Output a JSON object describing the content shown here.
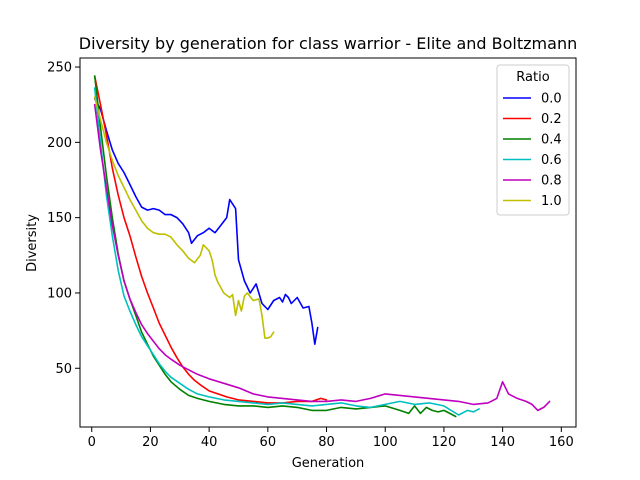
{
  "chart_data": {
    "type": "line",
    "title": "Diversity by generation for class warrior - Elite and Boltzmann",
    "xlabel": "Generation",
    "ylabel": "Diversity",
    "xlim": [
      -4,
      165
    ],
    "ylim": [
      11,
      256
    ],
    "xticks": [
      0,
      20,
      40,
      60,
      80,
      100,
      120,
      140,
      160
    ],
    "yticks": [
      50,
      100,
      150,
      200,
      250
    ],
    "grid": false,
    "legend": {
      "title": "Ratio",
      "placement": "top-right"
    },
    "series": [
      {
        "name": "0.0",
        "color": "#0000ff",
        "x": [
          1,
          3,
          5,
          7,
          9,
          11,
          13,
          15,
          17,
          19,
          21,
          23,
          25,
          27,
          29,
          31,
          33,
          34,
          36,
          38,
          40,
          42,
          44,
          46,
          47,
          49,
          50,
          52,
          54,
          56,
          58,
          60,
          62,
          64,
          65,
          66,
          67,
          68,
          70,
          72,
          74,
          75,
          76,
          77
        ],
        "values": [
          229,
          222,
          208,
          195,
          186,
          180,
          172,
          164,
          157,
          155,
          156,
          155,
          152,
          152,
          150,
          146,
          140,
          133,
          138,
          140,
          143,
          140,
          145,
          150,
          162,
          156,
          122,
          108,
          100,
          106,
          93,
          89,
          95,
          97,
          94,
          99,
          97,
          93,
          97,
          90,
          91,
          80,
          66,
          77
        ]
      },
      {
        "name": "0.2",
        "color": "#ff0000",
        "x": [
          1,
          3,
          5,
          7,
          9,
          11,
          13,
          15,
          17,
          19,
          21,
          23,
          25,
          27,
          29,
          31,
          33,
          35,
          37,
          40,
          43,
          46,
          50,
          55,
          60,
          65,
          70,
          75,
          78,
          80
        ],
        "values": [
          244,
          225,
          205,
          183,
          165,
          150,
          138,
          124,
          111,
          100,
          90,
          80,
          72,
          64,
          57,
          51,
          46,
          42,
          39,
          35,
          33,
          31,
          29,
          28,
          27,
          27,
          28,
          28,
          30,
          29
        ]
      },
      {
        "name": "0.4",
        "color": "#008000",
        "x": [
          1,
          3,
          5,
          7,
          9,
          11,
          13,
          15,
          17,
          19,
          21,
          23,
          25,
          27,
          30,
          33,
          36,
          40,
          45,
          50,
          55,
          60,
          65,
          70,
          75,
          80,
          85,
          90,
          95,
          100,
          105,
          108,
          110,
          112,
          114,
          116,
          118,
          120,
          122,
          124
        ],
        "values": [
          244,
          210,
          178,
          150,
          126,
          108,
          96,
          85,
          74,
          66,
          58,
          52,
          46,
          41,
          36,
          32,
          30,
          28,
          26,
          25,
          25,
          24,
          25,
          24,
          22,
          22,
          24,
          23,
          24,
          25,
          22,
          20,
          25,
          20,
          24,
          22,
          21,
          22,
          20,
          18
        ]
      },
      {
        "name": "0.6",
        "color": "#00bfbf",
        "x": [
          1,
          3,
          5,
          7,
          9,
          11,
          13,
          15,
          17,
          19,
          21,
          23,
          25,
          27,
          30,
          33,
          36,
          40,
          45,
          50,
          55,
          60,
          65,
          70,
          75,
          80,
          85,
          90,
          95,
          100,
          105,
          110,
          115,
          120,
          125,
          128,
          130,
          132
        ],
        "values": [
          236,
          200,
          165,
          138,
          115,
          98,
          88,
          79,
          71,
          65,
          59,
          53,
          48,
          44,
          40,
          36,
          33,
          31,
          29,
          28,
          27,
          26,
          27,
          26,
          25,
          26,
          27,
          25,
          24,
          26,
          28,
          26,
          27,
          25,
          19,
          22,
          21,
          23
        ]
      },
      {
        "name": "0.8",
        "color": "#bf00bf",
        "x": [
          1,
          3,
          5,
          7,
          9,
          11,
          13,
          15,
          17,
          19,
          21,
          23,
          25,
          27,
          30,
          33,
          36,
          40,
          45,
          50,
          55,
          60,
          65,
          70,
          75,
          80,
          85,
          90,
          95,
          100,
          105,
          110,
          115,
          120,
          125,
          130,
          135,
          138,
          140,
          142,
          145,
          148,
          150,
          152,
          154,
          156
        ],
        "values": [
          225,
          195,
          170,
          145,
          125,
          108,
          96,
          87,
          79,
          73,
          68,
          63,
          59,
          56,
          52,
          49,
          46,
          43,
          40,
          37,
          33,
          31,
          30,
          29,
          28,
          28,
          29,
          28,
          30,
          33,
          32,
          31,
          30,
          29,
          28,
          26,
          27,
          30,
          41,
          33,
          30,
          28,
          26,
          22,
          24,
          28
        ]
      },
      {
        "name": "1.0",
        "color": "#bfbf00",
        "x": [
          1,
          3,
          5,
          7,
          9,
          11,
          13,
          15,
          17,
          19,
          21,
          23,
          25,
          27,
          29,
          31,
          33,
          35,
          37,
          38,
          40,
          41,
          42,
          43,
          45,
          47,
          48,
          49,
          50,
          51,
          52,
          53,
          55,
          57,
          58,
          59,
          60,
          61,
          62
        ],
        "values": [
          230,
          215,
          200,
          188,
          178,
          170,
          162,
          155,
          148,
          143,
          140,
          139,
          139,
          137,
          132,
          128,
          123,
          120,
          125,
          132,
          128,
          122,
          112,
          107,
          100,
          97,
          99,
          85,
          95,
          88,
          98,
          100,
          95,
          96,
          85,
          70,
          70,
          71,
          74
        ]
      }
    ]
  }
}
